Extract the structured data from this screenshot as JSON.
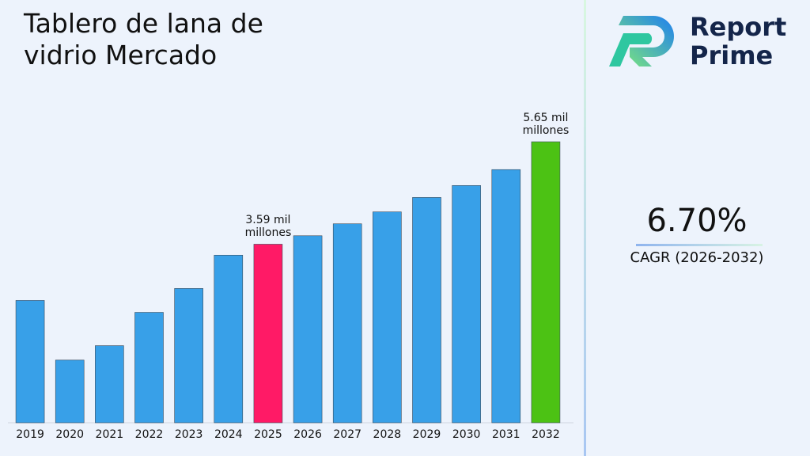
{
  "chart_data": {
    "type": "bar",
    "title": "Tablero de lana de vidrio Mercado",
    "categories": [
      "2019",
      "2020",
      "2021",
      "2022",
      "2023",
      "2024",
      "2025",
      "2026",
      "2027",
      "2028",
      "2029",
      "2030",
      "2031",
      "2032"
    ],
    "values": [
      2.46,
      1.26,
      1.55,
      2.22,
      2.7,
      3.37,
      3.59,
      3.76,
      4.0,
      4.24,
      4.53,
      4.77,
      5.09,
      5.65
    ],
    "value_labels": [
      null,
      null,
      null,
      null,
      null,
      null,
      "3.59 mil millones",
      null,
      null,
      null,
      null,
      null,
      null,
      "5.65 mil millones"
    ],
    "colors": [
      "#38a0e8",
      "#38a0e8",
      "#38a0e8",
      "#38a0e8",
      "#38a0e8",
      "#38a0e8",
      "#ff1a66",
      "#38a0e8",
      "#38a0e8",
      "#38a0e8",
      "#38a0e8",
      "#38a0e8",
      "#38a0e8",
      "#4cc214"
    ],
    "ylim": [
      0,
      8.5
    ]
  },
  "side_panel": {
    "logo_line1": "Report",
    "logo_line2": "Prime",
    "cagr": "6.70%",
    "cagr_label": "CAGR (2026-2032)"
  }
}
